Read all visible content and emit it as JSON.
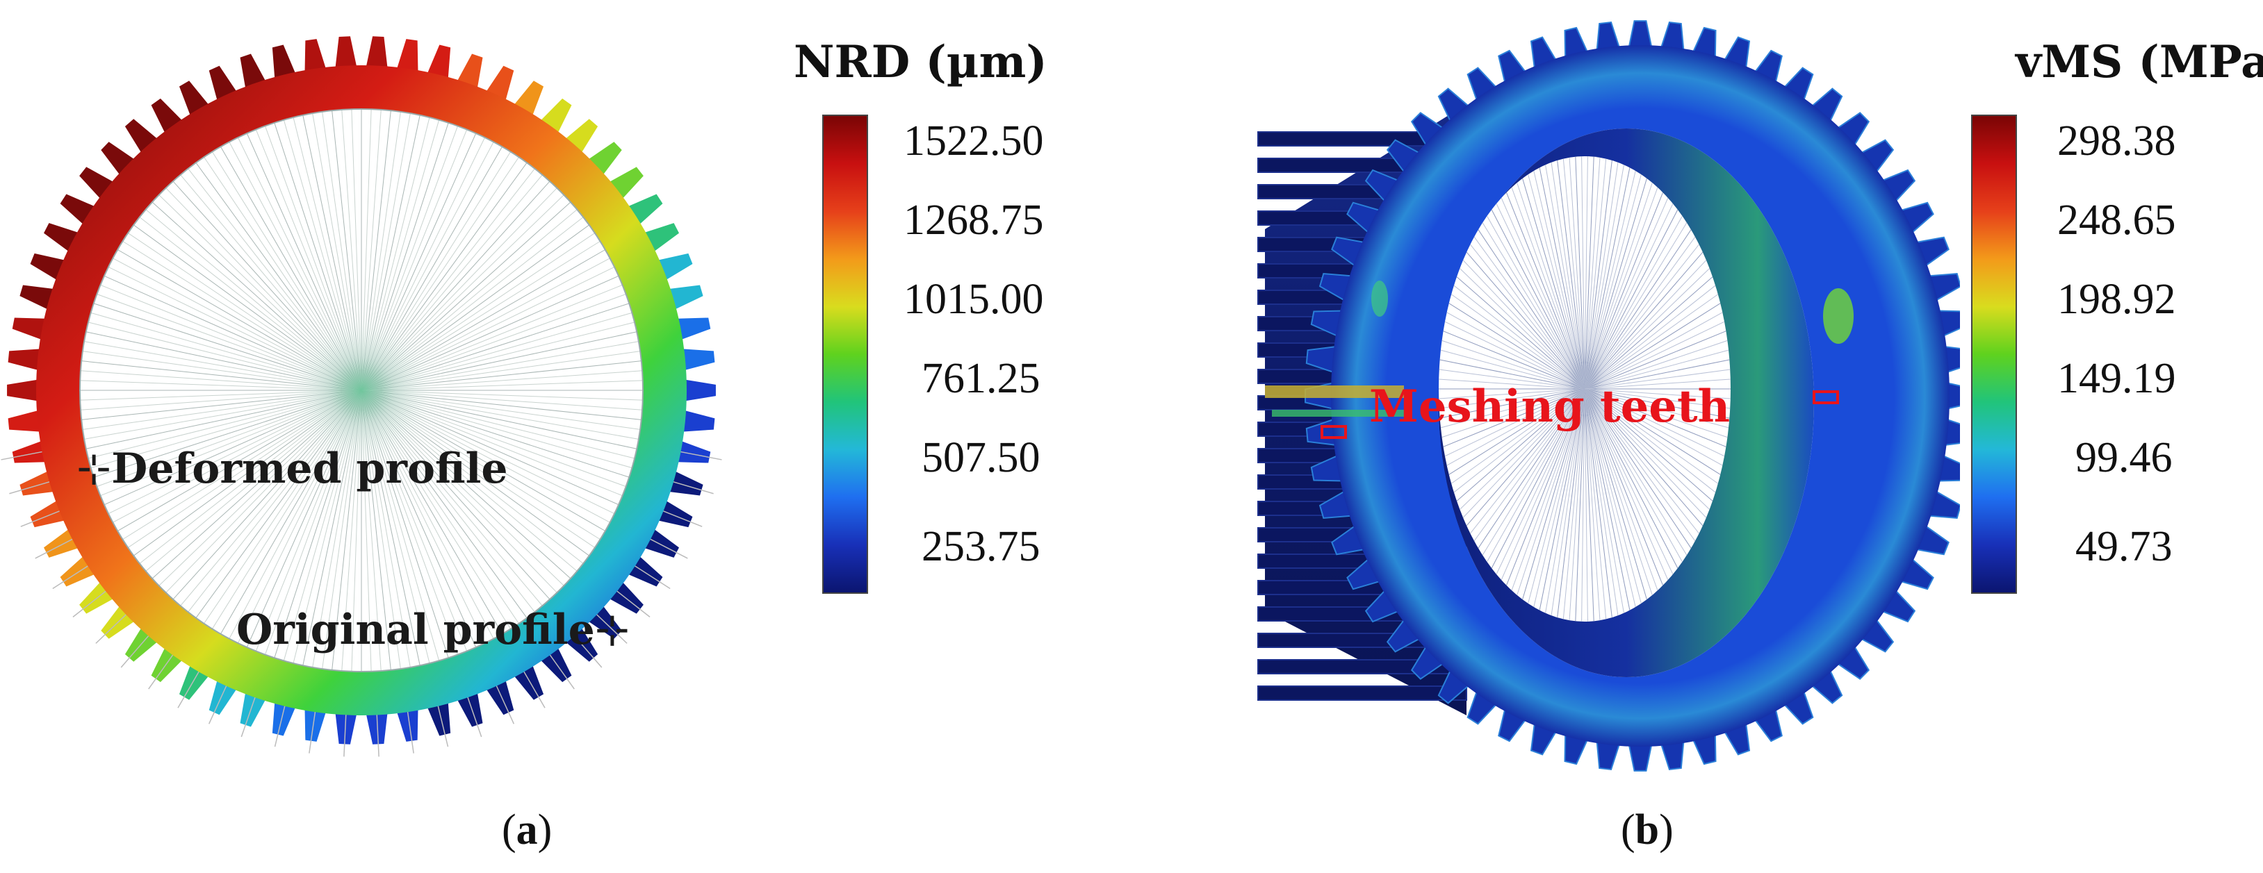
{
  "panel_a": {
    "colorbar": {
      "title": "NRD (µm)",
      "ticks": [
        "1522.50",
        "1268.75",
        "1015.00",
        "761.25",
        "507.50",
        "253.75"
      ]
    },
    "annotations": {
      "deformed": "Deformed profile",
      "original": "Original profile"
    },
    "caption": {
      "open": "(",
      "letter": "a",
      "close": ")"
    }
  },
  "panel_b": {
    "colorbar": {
      "title": "vMS (MPa)",
      "ticks": [
        "298.38",
        "248.65",
        "198.92",
        "149.19",
        "99.46",
        "49.73"
      ]
    },
    "annotations": {
      "meshing": "Meshing teeth"
    },
    "caption": {
      "open": "(",
      "letter": "b",
      "close": ")"
    }
  },
  "colors": {
    "annotation_dark": "#1a1a1a",
    "annotation_red": "#e8141b",
    "deep_blue": "#0d1a66"
  }
}
